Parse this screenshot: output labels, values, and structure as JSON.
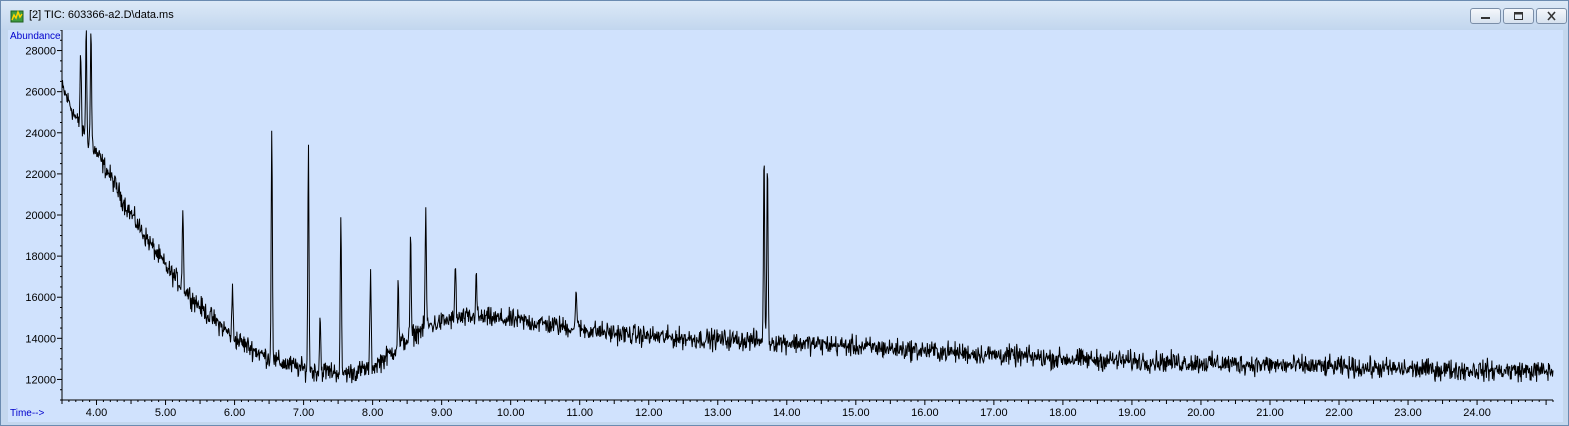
{
  "window": {
    "title": "[2] TIC: 603366-a2.D\\data.ms",
    "controls": [
      "minimize-icon",
      "maximize-icon",
      "close-icon"
    ]
  },
  "chart_data": {
    "type": "line",
    "ylabel": "Abundance",
    "xlabel": "Time-->",
    "xlim": [
      3.5,
      25.1
    ],
    "ylim": [
      11000,
      29000
    ],
    "x_ticks": [
      "4.00",
      "5.00",
      "6.00",
      "7.00",
      "8.00",
      "9.00",
      "10.00",
      "11.00",
      "12.00",
      "13.00",
      "14.00",
      "15.00",
      "16.00",
      "17.00",
      "18.00",
      "19.00",
      "20.00",
      "21.00",
      "22.00",
      "23.00",
      "24.00"
    ],
    "y_ticks": [
      "12000",
      "14000",
      "16000",
      "18000",
      "20000",
      "22000",
      "24000",
      "26000",
      "28000"
    ],
    "line_color": "#000000",
    "background_color": "#d0e2fd",
    "grid": false,
    "series": [
      {
        "x": [
          3.5,
          3.6,
          3.7,
          3.8,
          3.9,
          4.0,
          4.2,
          4.4,
          4.6,
          4.8,
          5.0,
          5.2,
          5.4,
          5.6,
          5.8,
          6.0,
          6.2,
          6.4,
          6.6,
          6.8,
          7.0,
          7.2,
          7.4,
          7.6,
          7.8,
          8.0,
          8.2,
          8.4,
          8.6,
          8.8,
          9.0,
          9.2,
          9.4,
          9.6,
          9.8,
          10.0,
          10.5,
          11.0,
          11.5,
          12.0,
          12.5,
          13.0,
          13.5,
          14.0,
          14.5,
          15.0,
          15.5,
          16.0,
          17.0,
          18.0,
          19.0,
          20.0,
          21.0,
          22.0,
          23.0,
          24.0,
          25.0,
          25.1
        ],
        "baseline": [
          26200,
          25500,
          24700,
          24100,
          23600,
          23000,
          21900,
          20600,
          19500,
          18500,
          17500,
          16700,
          15900,
          15200,
          14600,
          14000,
          13600,
          13200,
          12900,
          12700,
          12500,
          12400,
          12400,
          12300,
          12400,
          12600,
          13100,
          13700,
          14200,
          14600,
          14800,
          14950,
          15000,
          15000,
          14950,
          14900,
          14700,
          14450,
          14250,
          14100,
          14000,
          13950,
          13900,
          13800,
          13700,
          13600,
          13500,
          13400,
          13200,
          13000,
          12900,
          12800,
          12700,
          12600,
          12500,
          12450,
          12400,
          12400
        ],
        "noise_amplitude": 450
      }
    ],
    "peaks": [
      {
        "x": 3.77,
        "y": 28000
      },
      {
        "x": 3.85,
        "y": 29000
      },
      {
        "x": 3.92,
        "y": 29000
      },
      {
        "x": 5.25,
        "y": 20400
      },
      {
        "x": 5.97,
        "y": 16400
      },
      {
        "x": 6.54,
        "y": 24400
      },
      {
        "x": 7.07,
        "y": 23200
      },
      {
        "x": 7.24,
        "y": 15100
      },
      {
        "x": 7.54,
        "y": 19700
      },
      {
        "x": 7.97,
        "y": 17300
      },
      {
        "x": 8.37,
        "y": 16700
      },
      {
        "x": 8.55,
        "y": 18800
      },
      {
        "x": 8.77,
        "y": 20400
      },
      {
        "x": 9.2,
        "y": 17600
      },
      {
        "x": 9.5,
        "y": 17400
      },
      {
        "x": 10.95,
        "y": 16700
      },
      {
        "x": 13.67,
        "y": 22800
      },
      {
        "x": 13.72,
        "y": 23000
      }
    ]
  }
}
